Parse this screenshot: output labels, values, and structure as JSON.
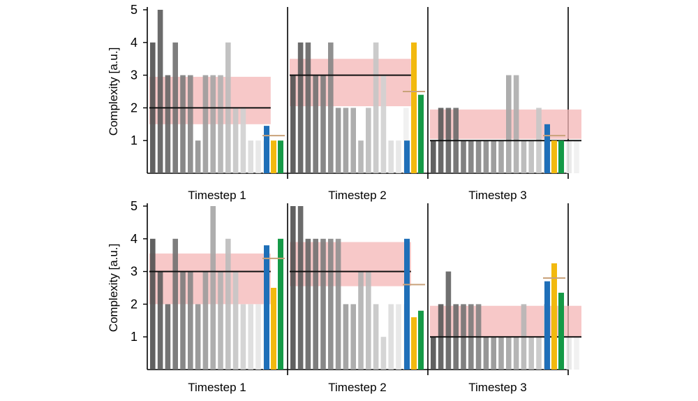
{
  "chart_data": [
    {
      "type": "bar",
      "panel": "top",
      "ylabel": "Complexity [a.u.]",
      "ylim": [
        0,
        5
      ],
      "yticks": [
        "1",
        "2",
        "3",
        "4",
        "5"
      ],
      "timesteps": [
        {
          "label": "Timestep 1",
          "values": [
            4,
            5,
            3,
            4,
            3,
            3,
            1,
            3,
            3,
            3,
            4,
            2,
            2,
            1,
            1,
            1
          ],
          "mean": 2.0,
          "band": [
            1.5,
            2.95
          ],
          "summary": {
            "blue": [
              1.45,
              1.0
            ],
            "orange": 1.0,
            "green": 1.0,
            "line": 1.15
          }
        },
        {
          "label": "Timestep 2",
          "values": [
            3,
            4,
            4,
            3,
            3,
            4,
            2,
            2,
            2,
            1,
            2,
            4,
            3,
            1,
            1,
            2
          ],
          "mean": 3.0,
          "band": [
            2.05,
            3.5
          ],
          "summary": {
            "blue": [
              1.0
            ],
            "orange": 4.0,
            "green": 2.4,
            "line": 2.5
          }
        },
        {
          "label": "Timestep 3",
          "values": [
            1,
            2,
            2,
            2,
            1,
            1,
            1,
            1,
            1,
            1,
            3,
            3,
            1,
            1,
            2,
            1,
            1,
            1,
            1,
            1
          ],
          "mean": 1.0,
          "band": [
            1.05,
            1.95
          ],
          "summary": {
            "blue": [
              1.5,
              1.05
            ],
            "orange": 1.0,
            "green": 1.0,
            "line": 1.15
          }
        }
      ]
    },
    {
      "type": "bar",
      "panel": "bottom",
      "ylabel": "Complexity [a.u.]",
      "ylim": [
        0,
        5
      ],
      "yticks": [
        "1",
        "2",
        "3",
        "4",
        "5"
      ],
      "timesteps": [
        {
          "label": "Timestep 1",
          "values": [
            4,
            3,
            2,
            4,
            3,
            3,
            2,
            3,
            5,
            3,
            4,
            3,
            2,
            2,
            2,
            2
          ],
          "mean": 3.0,
          "band": [
            2.0,
            3.55
          ],
          "summary": {
            "blue": [
              3.8,
              3.3
            ],
            "orange": 2.5,
            "green": 4.0,
            "line": 3.4
          }
        },
        {
          "label": "Timestep 2",
          "values": [
            5,
            5,
            4,
            4,
            4,
            4,
            4,
            2,
            2,
            3,
            3,
            2,
            1,
            2,
            2,
            2
          ],
          "mean": 3.0,
          "band": [
            2.55,
            3.9
          ],
          "summary": {
            "blue": [
              4.0
            ],
            "orange": 1.6,
            "green": 1.8,
            "line": 2.6
          }
        },
        {
          "label": "Timestep 3",
          "values": [
            1,
            2,
            3,
            2,
            2,
            2,
            2,
            1,
            1,
            1,
            1,
            1,
            2,
            1,
            1,
            2,
            1,
            1,
            1,
            1
          ],
          "mean": 1.0,
          "band": [
            1.0,
            1.95
          ],
          "summary": {
            "blue": [
              2.7
            ],
            "orange": 3.25,
            "green": 2.35,
            "line": 2.8
          }
        }
      ]
    }
  ],
  "colors": {
    "band": "#f4b6b6",
    "blue": "#1f6fb8",
    "orange": "#f2b90f",
    "green": "#159a47",
    "mean_line": "#111111",
    "summary_line": "#c9a27a"
  }
}
